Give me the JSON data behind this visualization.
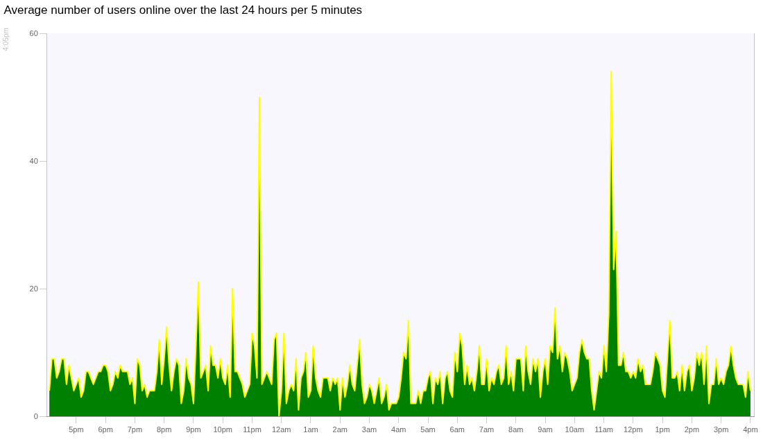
{
  "chart_data": {
    "type": "area",
    "title": "Average number of users online over the last 24 hours per 5 minutes",
    "annotations": [
      "4:05pm"
    ],
    "ylim": [
      0,
      60
    ],
    "yticks": [
      0,
      20,
      40,
      60
    ],
    "categories": [
      null,
      null,
      null,
      null,
      null,
      null,
      null,
      null,
      null,
      null,
      null,
      "5pm",
      null,
      null,
      null,
      null,
      null,
      null,
      null,
      null,
      null,
      null,
      null,
      "6pm",
      null,
      null,
      null,
      null,
      null,
      null,
      null,
      null,
      null,
      null,
      null,
      "7pm",
      null,
      null,
      null,
      null,
      null,
      null,
      null,
      null,
      null,
      null,
      null,
      "8pm",
      null,
      null,
      null,
      null,
      null,
      null,
      null,
      null,
      null,
      null,
      null,
      "9pm",
      null,
      null,
      null,
      null,
      null,
      null,
      null,
      null,
      null,
      null,
      null,
      "10pm",
      null,
      null,
      null,
      null,
      null,
      null,
      null,
      null,
      null,
      null,
      null,
      "11pm",
      null,
      null,
      null,
      null,
      null,
      null,
      null,
      null,
      null,
      null,
      null,
      "12am",
      null,
      null,
      null,
      null,
      null,
      null,
      null,
      null,
      null,
      null,
      null,
      "1am",
      null,
      null,
      null,
      null,
      null,
      null,
      null,
      null,
      null,
      null,
      null,
      "2am",
      null,
      null,
      null,
      null,
      null,
      null,
      null,
      null,
      null,
      null,
      null,
      "3am",
      null,
      null,
      null,
      null,
      null,
      null,
      null,
      null,
      null,
      null,
      null,
      "4am",
      null,
      null,
      null,
      null,
      null,
      null,
      null,
      null,
      null,
      null,
      null,
      "5am",
      null,
      null,
      null,
      null,
      null,
      null,
      null,
      null,
      null,
      null,
      null,
      "6am",
      null,
      null,
      null,
      null,
      null,
      null,
      null,
      null,
      null,
      null,
      null,
      "7am",
      null,
      null,
      null,
      null,
      null,
      null,
      null,
      null,
      null,
      null,
      null,
      "8am",
      null,
      null,
      null,
      null,
      null,
      null,
      null,
      null,
      null,
      null,
      null,
      "9am",
      null,
      null,
      null,
      null,
      null,
      null,
      null,
      null,
      null,
      null,
      null,
      "10am",
      null,
      null,
      null,
      null,
      null,
      null,
      null,
      null,
      null,
      null,
      null,
      "11am",
      null,
      null,
      null,
      null,
      null,
      null,
      null,
      null,
      null,
      null,
      null,
      "12pm",
      null,
      null,
      null,
      null,
      null,
      null,
      null,
      null,
      null,
      null,
      null,
      "1pm",
      null,
      null,
      null,
      null,
      null,
      null,
      null,
      null,
      null,
      null,
      null,
      "2pm",
      null,
      null,
      null,
      null,
      null,
      null,
      null,
      null,
      null,
      null,
      null,
      "3pm",
      null,
      null,
      null,
      null,
      null,
      null,
      null,
      null,
      null,
      null,
      null,
      "4pm"
    ],
    "series": [
      {
        "color": "#008000",
        "values": [
          4,
          9,
          9,
          6,
          7,
          9,
          9,
          5,
          8,
          6,
          4,
          5,
          6,
          3,
          4,
          7,
          7,
          6,
          5,
          6,
          7,
          7,
          8,
          8,
          7,
          4,
          5,
          7,
          6,
          8,
          7,
          7,
          7,
          5,
          6,
          2,
          9,
          8,
          4,
          5,
          3,
          4,
          4,
          4,
          7,
          12,
          5,
          9,
          14,
          8,
          4,
          7,
          9,
          8,
          2,
          4,
          9,
          6,
          5,
          2,
          11,
          21,
          6,
          7,
          8,
          4,
          11,
          8,
          8,
          6,
          9,
          6,
          5,
          8,
          3,
          20,
          7,
          7,
          6,
          5,
          3,
          4,
          5,
          13,
          11,
          6,
          50,
          5,
          6,
          7,
          6,
          5,
          12,
          13,
          0,
          4,
          13,
          2,
          4,
          5,
          4,
          9,
          1,
          6,
          7,
          10,
          3,
          4,
          11,
          6,
          4,
          3,
          6,
          6,
          6,
          4,
          6,
          5,
          6,
          1,
          6,
          3,
          5,
          8,
          5,
          4,
          8,
          12,
          5,
          2,
          3,
          5,
          4,
          2,
          4,
          6,
          2,
          3,
          5,
          1,
          2,
          2,
          2,
          3,
          6,
          10,
          9,
          15,
          2,
          2,
          2,
          4,
          2,
          4,
          4,
          6,
          7,
          2,
          6,
          5,
          7,
          2,
          6,
          7,
          4,
          3,
          10,
          7,
          13,
          11,
          5,
          8,
          5,
          6,
          4,
          7,
          11,
          5,
          5,
          9,
          4,
          6,
          5,
          7,
          8,
          5,
          6,
          11,
          5,
          7,
          4,
          9,
          9,
          9,
          4,
          11,
          7,
          5,
          9,
          7,
          9,
          3,
          7,
          9,
          5,
          11,
          10,
          17,
          9,
          11,
          7,
          10,
          9,
          7,
          4,
          5,
          6,
          10,
          12,
          10,
          9,
          9,
          4,
          1,
          4,
          7,
          6,
          11,
          7,
          16,
          54,
          23,
          29,
          8,
          8,
          10,
          7,
          7,
          6,
          7,
          6,
          9,
          7,
          8,
          5,
          5,
          5,
          7,
          10,
          9,
          8,
          4,
          3,
          9,
          15,
          6,
          6,
          7,
          4,
          8,
          4,
          7,
          8,
          4,
          6,
          10,
          8,
          10,
          5,
          11,
          2,
          5,
          5,
          9,
          5,
          6,
          5,
          7,
          8,
          11,
          8,
          6,
          5,
          5,
          5,
          3,
          7,
          4
        ]
      }
    ]
  }
}
